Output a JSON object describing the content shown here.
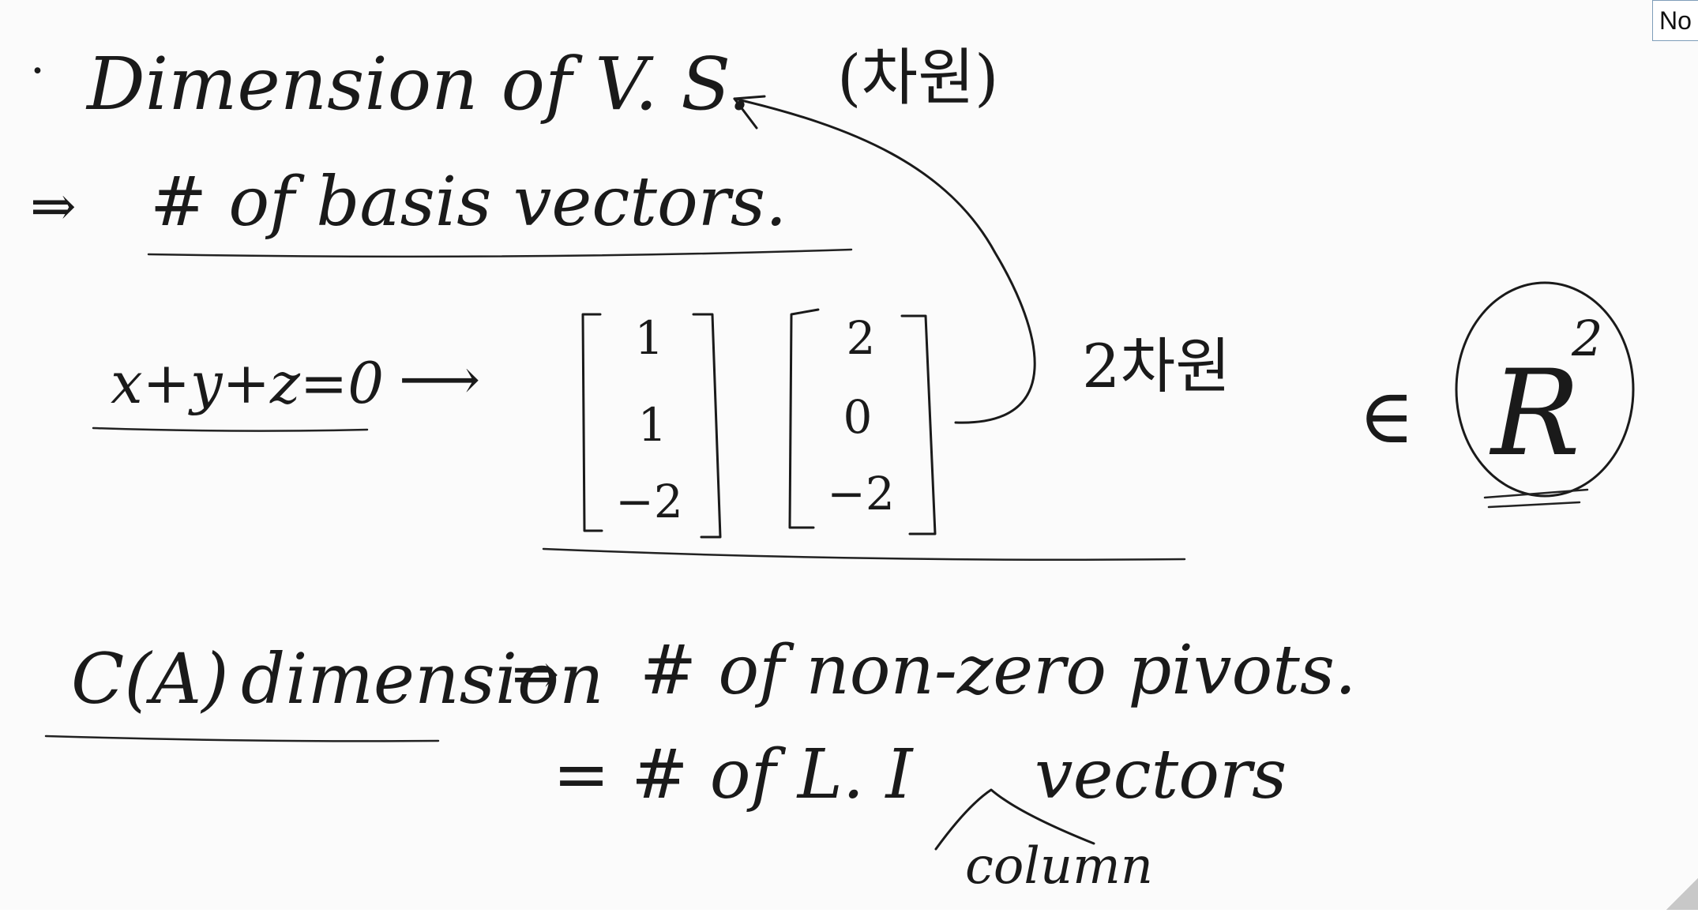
{
  "note_tab": {
    "label": "No"
  },
  "line1": {
    "bullet": "·",
    "text": "Dimension  of  V. S.",
    "korean": "(차원)"
  },
  "line2": {
    "arrow": "⇒",
    "text": "# of  basis  vectors."
  },
  "example": {
    "equation": "x+y+z=0",
    "arrow": "⟶",
    "vector1": [
      "1",
      "1",
      "−2"
    ],
    "vector2": [
      "2",
      "0",
      "−2"
    ],
    "korean_label": "2차원",
    "element_of": "∈",
    "space": "R",
    "space_exponent": "2"
  },
  "column_space": {
    "term": "C(A)",
    "word": "dimension",
    "arrow": "⇒",
    "line1": "# of  non-zero  pivots.",
    "line2_prefix": "=  # of  L. I",
    "line2_suffix": "vectors",
    "annotation": "column"
  }
}
